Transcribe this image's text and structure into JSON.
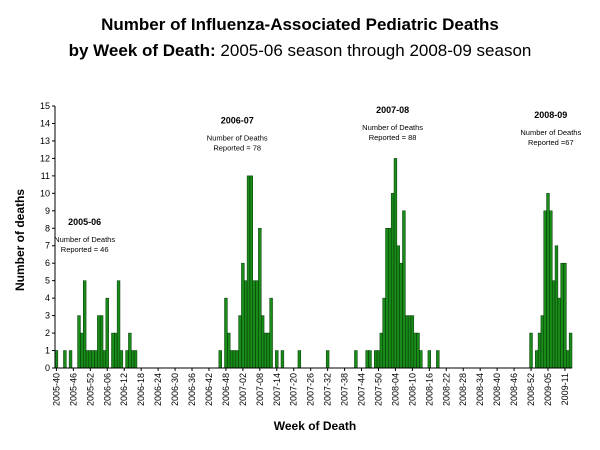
{
  "title": {
    "line1": "Number of Influenza-Associated Pediatric Deaths",
    "line2_bold": "by Week of Death:",
    "line2_rest": " 2005-06 season through 2008-09 season"
  },
  "chart_data": {
    "type": "bar",
    "xlabel": "Week of Death",
    "ylabel": "Number of deaths",
    "ylim": [
      0,
      15
    ],
    "yticks": [
      0,
      1,
      2,
      3,
      4,
      5,
      6,
      7,
      8,
      9,
      10,
      11,
      12,
      13,
      14,
      15
    ],
    "bar_color": "#1a8a1a",
    "bar_edge": "#003300",
    "start_week": "2005-40",
    "tick_labels": [
      "2005-40",
      "2005-46",
      "2005-52",
      "2006-06",
      "2006-12",
      "2006-18",
      "2006-24",
      "2006-30",
      "2006-36",
      "2006-42",
      "2006-48",
      "2007-02",
      "2007-08",
      "2007-14",
      "2007-20",
      "2007-26",
      "2007-32",
      "2007-38",
      "2007-44",
      "2007-50",
      "2008-04",
      "2008-10",
      "2008-16",
      "2008-22",
      "2008-28",
      "2008-34",
      "2008-40",
      "2008-46",
      "2008-52",
      "2009-05",
      "2009-11"
    ],
    "values": [
      1,
      0,
      0,
      1,
      0,
      1,
      0,
      0,
      3,
      2,
      5,
      1,
      1,
      1,
      1,
      3,
      3,
      1,
      4,
      0,
      2,
      2,
      5,
      1,
      0,
      1,
      2,
      1,
      1,
      0,
      0,
      0,
      0,
      0,
      0,
      0,
      0,
      0,
      0,
      0,
      0,
      0,
      0,
      0,
      0,
      0,
      0,
      0,
      0,
      0,
      0,
      0,
      0,
      0,
      0,
      0,
      0,
      0,
      1,
      0,
      4,
      2,
      1,
      1,
      1,
      3,
      6,
      5,
      11,
      11,
      5,
      5,
      8,
      3,
      2,
      2,
      4,
      0,
      1,
      0,
      1,
      0,
      0,
      0,
      0,
      0,
      1,
      0,
      0,
      0,
      0,
      0,
      0,
      0,
      0,
      0,
      1,
      0,
      0,
      0,
      0,
      0,
      0,
      0,
      0,
      0,
      1,
      0,
      0,
      0,
      1,
      1,
      0,
      1,
      1,
      2,
      4,
      8,
      8,
      10,
      12,
      7,
      6,
      9,
      3,
      3,
      3,
      2,
      2,
      1,
      0,
      0,
      1,
      0,
      0,
      1,
      0,
      0,
      0,
      0,
      0,
      0,
      0,
      0,
      0,
      0,
      0,
      0,
      0,
      0,
      0,
      0,
      0,
      0,
      0,
      0,
      0,
      0,
      0,
      0,
      0,
      0,
      0,
      0,
      0,
      0,
      0,
      0,
      2,
      0,
      1,
      2,
      3,
      9,
      10,
      9,
      5,
      7,
      4,
      6,
      6,
      1,
      2
    ],
    "annotations": [
      {
        "head": "2005-06",
        "line1": "Number of Deaths",
        "line2": "Reported = 46",
        "week_index": 10,
        "y": 8.2
      },
      {
        "head": "2006-07",
        "line1": "Number of Deaths",
        "line2": "Reported = 78",
        "week_index": 64,
        "y": 14.0
      },
      {
        "head": "2007-08",
        "line1": "Number of Deaths",
        "line2": "Reported = 88",
        "week_index": 119,
        "y": 14.6
      },
      {
        "head": "2008-09",
        "line1": "Number of Deaths",
        "line2": "Reported =67",
        "week_index": 175,
        "y": 14.3
      }
    ]
  }
}
